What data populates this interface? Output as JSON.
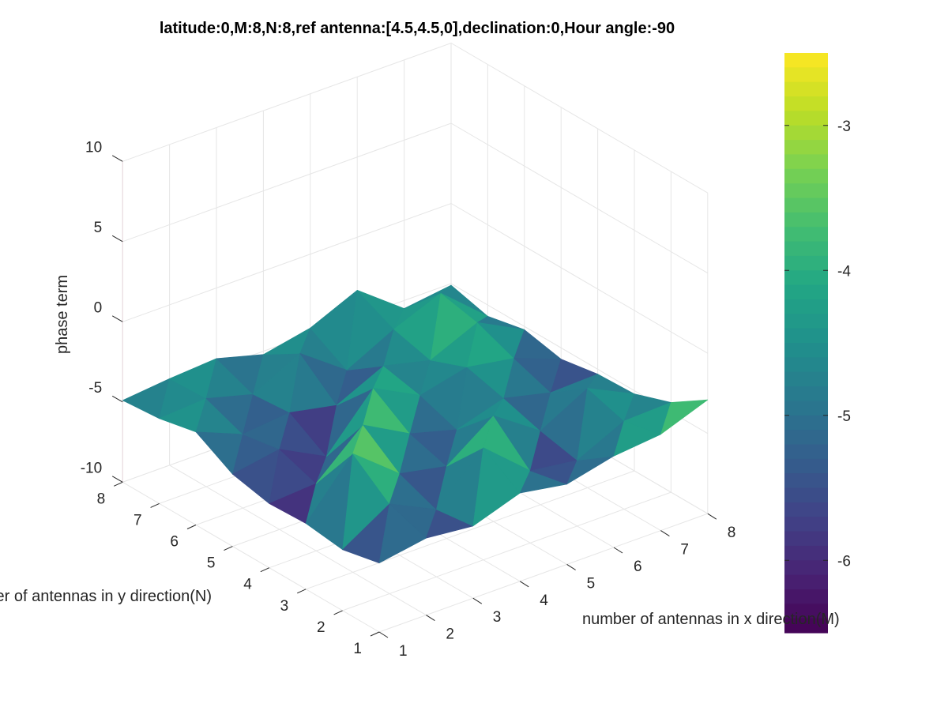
{
  "chart_data": {
    "type": "surface",
    "title": "latitude:0,M:8,N:8,ref antenna:[4.5,4.5,0],declination:0,Hour angle:-90",
    "xlabel": "number of antennas in x direction(M)",
    "ylabel": "number of antennas in y direction(N)",
    "zlabel": "phase term",
    "x": [
      1,
      2,
      3,
      4,
      5,
      6,
      7,
      8
    ],
    "y": [
      1,
      2,
      3,
      4,
      5,
      6,
      7,
      8
    ],
    "xlim": [
      1,
      8
    ],
    "ylim": [
      1,
      8
    ],
    "zlim": [
      -10,
      10
    ],
    "x_ticks": [
      "1",
      "2",
      "3",
      "4",
      "5",
      "6",
      "7",
      "8"
    ],
    "y_ticks": [
      "1",
      "2",
      "3",
      "4",
      "5",
      "6",
      "7",
      "8"
    ],
    "z_ticks": [
      "-10",
      "-5",
      "0",
      "5",
      "10"
    ],
    "colormap": "viridis",
    "color_limits": [
      -6.5,
      -2.5
    ],
    "colorbar_ticks": [
      "-3",
      "-4",
      "-5",
      "-6"
    ],
    "colorbar_tick_values": [
      -3,
      -4,
      -5,
      -6
    ],
    "grid": true,
    "z": [
      [
        -5.7,
        -5.2,
        -5.5,
        -4.5,
        -5.0,
        -4.3,
        -4.0,
        -2.9
      ],
      [
        -6.2,
        -4.4,
        -5.8,
        -3.0,
        -5.5,
        -5.9,
        -4.5,
        -4.4
      ],
      [
        -5.9,
        -2.6,
        -4.9,
        -5.5,
        -3.4,
        -5.4,
        -3.8,
        -5.2
      ],
      [
        -6.0,
        -5.8,
        -3.2,
        -4.8,
        -5.6,
        -4.7,
        -5.4,
        -5.3
      ],
      [
        -5.5,
        -5.0,
        -6.5,
        -3.3,
        -4.8,
        -4.1,
        -4.6,
        -5.7
      ],
      [
        -4.2,
        -5.4,
        -5.1,
        -5.7,
        -4.3,
        -5.0,
        -3.7,
        -5.2
      ],
      [
        -4.7,
        -4.5,
        -5.3,
        -3.8,
        -5.9,
        -4.4,
        -3.2,
        -5.7
      ],
      [
        -4.9,
        -4.6,
        -4.4,
        -5.2,
        -4.6,
        -3.3,
        -5.5,
        -5.1
      ]
    ]
  }
}
